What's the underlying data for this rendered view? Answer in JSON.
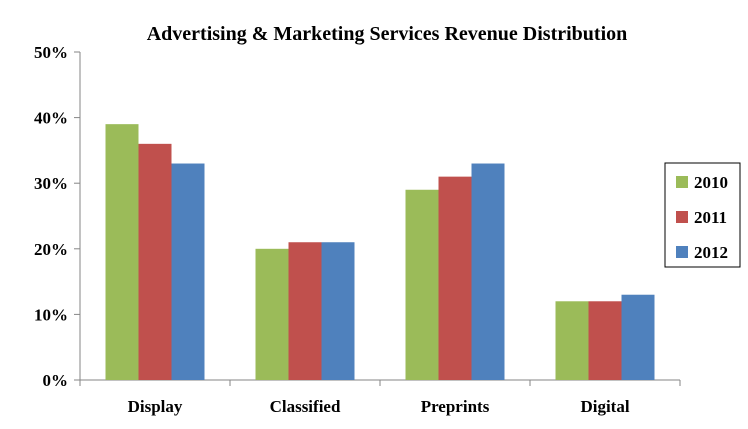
{
  "chart_data": {
    "type": "bar",
    "title": "Advertising & Marketing Services Revenue Distribution",
    "xlabel": "",
    "ylabel": "",
    "categories": [
      "Display",
      "Classified",
      "Preprints",
      "Digital"
    ],
    "series": [
      {
        "name": "2010",
        "values": [
          39,
          20,
          29,
          12
        ],
        "color": "#9BBB59"
      },
      {
        "name": "2011",
        "values": [
          36,
          21,
          31,
          12
        ],
        "color": "#C0504D"
      },
      {
        "name": "2012",
        "values": [
          33,
          21,
          33,
          13
        ],
        "color": "#4F81BD"
      }
    ],
    "ylim": [
      0,
      50
    ],
    "yticks": [
      {
        "value": 0,
        "label": "0%"
      },
      {
        "value": 10,
        "label": "10%"
      },
      {
        "value": 20,
        "label": "20%"
      },
      {
        "value": 30,
        "label": "30%"
      },
      {
        "value": 40,
        "label": "40%"
      },
      {
        "value": 50,
        "label": "50%"
      }
    ],
    "grid": false,
    "legend_position": "right"
  }
}
